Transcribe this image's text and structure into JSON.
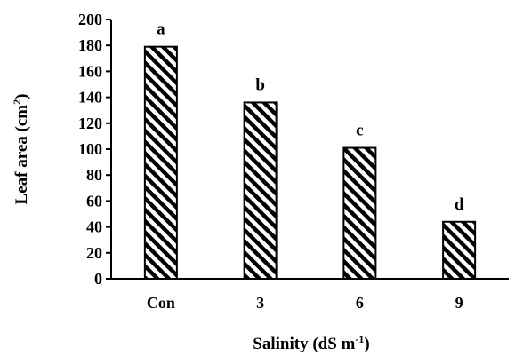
{
  "chart_data": {
    "type": "bar",
    "categories": [
      "Con",
      "3",
      "6",
      "9"
    ],
    "values": [
      179,
      136,
      101,
      44
    ],
    "significance_letters": [
      "a",
      "b",
      "c",
      "d"
    ],
    "ylim": [
      0,
      200
    ],
    "yticks": [
      0,
      20,
      40,
      60,
      80,
      100,
      120,
      140,
      160,
      180,
      200
    ],
    "ylabel": {
      "main": "Leaf area (cm",
      "sup": "2",
      "tail": ")"
    },
    "xlabel": {
      "main": "Salinity (dS m",
      "sup": "-1",
      "tail": ")"
    },
    "bar_pattern": "diagonal-hatch",
    "grid": false
  }
}
